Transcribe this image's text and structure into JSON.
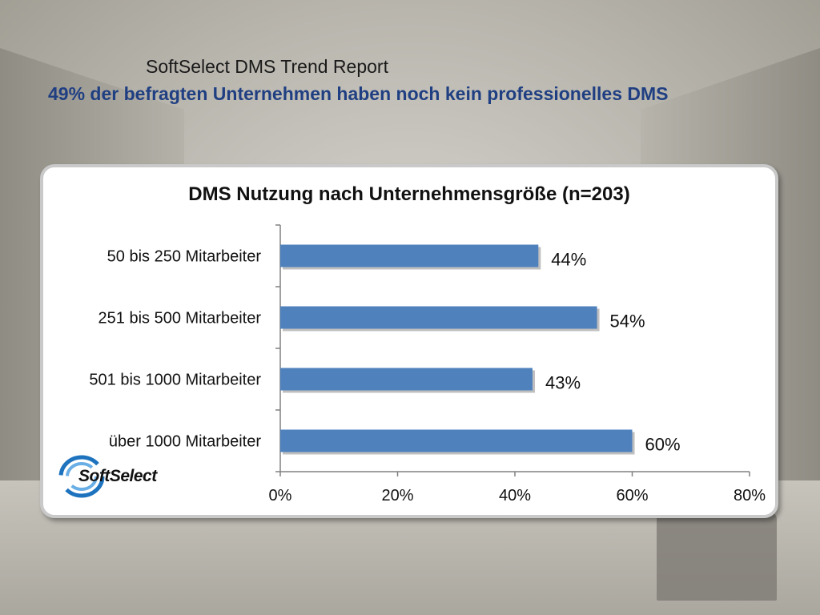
{
  "slide": {
    "title": "SoftSelect DMS Trend Report",
    "subtitle": "49% der befragten Unternehmen haben noch kein professionelles DMS"
  },
  "logo": {
    "text": "SoftSelect",
    "icon": "softselect-swirl-logo"
  },
  "colors": {
    "bar": "#4f81bd",
    "subtitle": "#1f3f82",
    "axis": "#808080"
  },
  "chart_data": {
    "type": "bar",
    "orientation": "horizontal",
    "title": "DMS Nutzung nach Unternehmensgröße (n=203)",
    "categories": [
      "50 bis 250 Mitarbeiter",
      "251 bis 500 Mitarbeiter",
      "501 bis 1000 Mitarbeiter",
      "über 1000 Mitarbeiter"
    ],
    "values": [
      44,
      54,
      43,
      60
    ],
    "value_labels": [
      "44%",
      "54%",
      "43%",
      "60%"
    ],
    "xlim": [
      0,
      80
    ],
    "xticks": [
      0,
      20,
      40,
      60,
      80
    ],
    "xtick_labels": [
      "0%",
      "20%",
      "40%",
      "60%",
      "80%"
    ],
    "grid": false,
    "legend": "none"
  }
}
